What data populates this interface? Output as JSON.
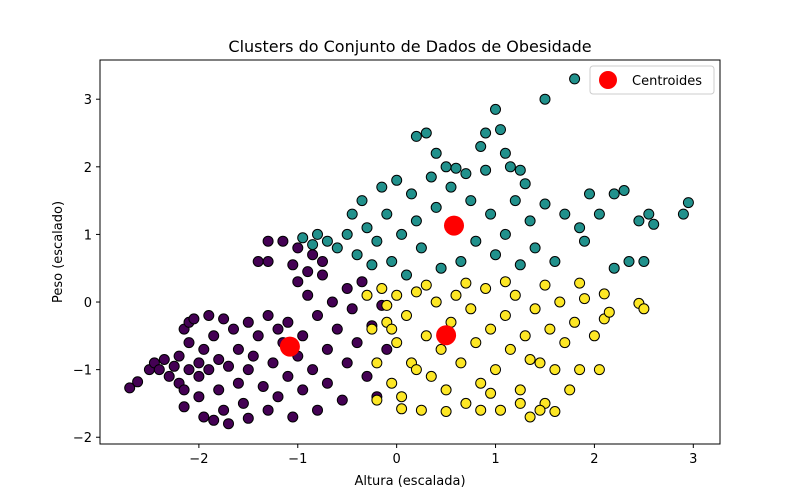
{
  "chart_data": {
    "type": "scatter",
    "title": "Clusters do Conjunto de Dados de Obesidade",
    "xlabel": "Altura (escalada)",
    "ylabel": "Peso (escalado)",
    "xlim": [
      -3.0,
      3.27
    ],
    "ylim": [
      -2.1,
      3.58
    ],
    "xticks": [
      -2,
      -1,
      0,
      1,
      2,
      3
    ],
    "yticks": [
      -2,
      -1,
      0,
      1,
      2,
      3
    ],
    "xtick_labels": [
      "−2",
      "−1",
      "0",
      "1",
      "2",
      "3"
    ],
    "ytick_labels": [
      "−2",
      "−1",
      "0",
      "1",
      "2",
      "3"
    ],
    "grid": false,
    "legend": {
      "position": "top-right",
      "entries": [
        "Centroides"
      ]
    },
    "colors": {
      "cluster_0": "#440154",
      "cluster_1": "#21918c",
      "cluster_2": "#fde725",
      "centroid": "#ff0000",
      "edge": "#000000"
    },
    "series": [
      {
        "cluster": 0,
        "values": [
          [
            -2.7,
            -1.27
          ],
          [
            -2.62,
            -1.18
          ],
          [
            -2.5,
            -1.0
          ],
          [
            -2.45,
            -0.9
          ],
          [
            -2.4,
            -1.0
          ],
          [
            -2.35,
            -0.85
          ],
          [
            -2.3,
            -1.1
          ],
          [
            -2.25,
            -0.95
          ],
          [
            -2.2,
            -0.8
          ],
          [
            -2.2,
            -1.2
          ],
          [
            -2.15,
            -1.55
          ],
          [
            -2.15,
            -1.3
          ],
          [
            -2.15,
            -0.4
          ],
          [
            -2.1,
            -0.3
          ],
          [
            -2.1,
            -0.6
          ],
          [
            -2.1,
            -1.0
          ],
          [
            -2.05,
            -0.25
          ],
          [
            -2.0,
            -0.9
          ],
          [
            -2.0,
            -1.4
          ],
          [
            -2.0,
            -1.1
          ],
          [
            -1.95,
            -0.7
          ],
          [
            -1.95,
            -1.7
          ],
          [
            -1.9,
            -0.2
          ],
          [
            -1.9,
            -1.0
          ],
          [
            -1.85,
            -1.75
          ],
          [
            -1.85,
            -0.5
          ],
          [
            -1.8,
            -0.85
          ],
          [
            -1.8,
            -1.3
          ],
          [
            -1.75,
            -0.25
          ],
          [
            -1.75,
            -1.6
          ],
          [
            -1.7,
            -1.8
          ],
          [
            -1.7,
            -0.95
          ],
          [
            -1.65,
            -0.4
          ],
          [
            -1.6,
            -1.2
          ],
          [
            -1.6,
            -0.7
          ],
          [
            -1.55,
            -1.5
          ],
          [
            -1.5,
            -0.3
          ],
          [
            -1.5,
            -1.0
          ],
          [
            -1.5,
            -1.72
          ],
          [
            -1.45,
            -0.8
          ],
          [
            -1.4,
            0.6
          ],
          [
            -1.4,
            -0.5
          ],
          [
            -1.35,
            -1.25
          ],
          [
            -1.3,
            0.6
          ],
          [
            -1.3,
            -0.2
          ],
          [
            -1.3,
            -1.6
          ],
          [
            -1.25,
            -0.9
          ],
          [
            -1.2,
            -0.4
          ],
          [
            -1.2,
            -1.4
          ],
          [
            -1.15,
            -0.6
          ],
          [
            -1.1,
            -1.1
          ],
          [
            -1.1,
            -0.3
          ],
          [
            -1.05,
            -1.7
          ],
          [
            -1.0,
            -0.8
          ],
          [
            -1.0,
            0.3
          ],
          [
            -0.95,
            -0.5
          ],
          [
            -0.95,
            -1.3
          ],
          [
            -0.9,
            0.1
          ],
          [
            -0.85,
            -1.0
          ],
          [
            -0.8,
            -0.2
          ],
          [
            -0.8,
            -1.6
          ],
          [
            -0.75,
            0.4
          ],
          [
            -0.7,
            -0.7
          ],
          [
            -0.7,
            -1.2
          ],
          [
            -0.65,
            0.0
          ],
          [
            -0.6,
            -0.4
          ],
          [
            -0.55,
            -1.45
          ],
          [
            -0.5,
            0.2
          ],
          [
            -0.5,
            -0.9
          ],
          [
            -0.45,
            -0.1
          ],
          [
            -0.4,
            -0.6
          ],
          [
            -0.35,
            0.3
          ],
          [
            -0.3,
            -1.1
          ],
          [
            -0.25,
            -0.35
          ],
          [
            -0.2,
            -1.4
          ],
          [
            -0.15,
            -0.05
          ],
          [
            -0.1,
            -0.7
          ],
          [
            -1.3,
            0.9
          ],
          [
            -1.15,
            0.9
          ],
          [
            -1.0,
            0.8
          ],
          [
            -0.85,
            0.7
          ],
          [
            -0.75,
            0.6
          ],
          [
            -1.05,
            0.55
          ],
          [
            -0.9,
            0.45
          ]
        ]
      },
      {
        "cluster": 1,
        "values": [
          [
            -0.95,
            0.95
          ],
          [
            -0.85,
            0.85
          ],
          [
            -0.8,
            1.0
          ],
          [
            -0.7,
            0.9
          ],
          [
            -0.6,
            0.8
          ],
          [
            -0.5,
            1.0
          ],
          [
            -0.45,
            1.3
          ],
          [
            -0.4,
            0.7
          ],
          [
            -0.35,
            1.5
          ],
          [
            -0.3,
            1.1
          ],
          [
            -0.25,
            0.55
          ],
          [
            -0.2,
            0.9
          ],
          [
            -0.15,
            1.7
          ],
          [
            -0.1,
            1.3
          ],
          [
            -0.05,
            0.6
          ],
          [
            0.0,
            1.8
          ],
          [
            0.05,
            1.0
          ],
          [
            0.1,
            0.4
          ],
          [
            0.15,
            1.6
          ],
          [
            0.2,
            1.2
          ],
          [
            0.25,
            0.8
          ],
          [
            0.3,
            2.5
          ],
          [
            0.35,
            1.85
          ],
          [
            0.4,
            1.4
          ],
          [
            0.45,
            0.5
          ],
          [
            0.5,
            2.0
          ],
          [
            0.55,
            1.7
          ],
          [
            0.6,
            1.1
          ],
          [
            0.65,
            0.6
          ],
          [
            0.7,
            1.9
          ],
          [
            0.75,
            1.5
          ],
          [
            0.8,
            0.9
          ],
          [
            0.85,
            2.3
          ],
          [
            0.9,
            1.95
          ],
          [
            0.95,
            1.3
          ],
          [
            1.0,
            2.85
          ],
          [
            1.0,
            0.7
          ],
          [
            1.05,
            2.55
          ],
          [
            1.1,
            1.0
          ],
          [
            1.15,
            2.0
          ],
          [
            1.2,
            1.5
          ],
          [
            1.25,
            0.55
          ],
          [
            1.3,
            1.75
          ],
          [
            1.35,
            1.2
          ],
          [
            1.5,
            3.0
          ],
          [
            1.5,
            1.45
          ],
          [
            1.6,
            0.6
          ],
          [
            1.7,
            1.3
          ],
          [
            1.8,
            3.3
          ],
          [
            1.85,
            1.1
          ],
          [
            1.95,
            1.6
          ],
          [
            2.05,
            1.3
          ],
          [
            2.2,
            1.6
          ],
          [
            2.3,
            1.65
          ],
          [
            2.45,
            1.2
          ],
          [
            2.55,
            1.3
          ],
          [
            2.6,
            1.15
          ],
          [
            2.9,
            1.3
          ],
          [
            2.95,
            1.47
          ],
          [
            2.35,
            0.6
          ],
          [
            2.5,
            0.6
          ],
          [
            2.2,
            0.5
          ],
          [
            1.9,
            0.9
          ],
          [
            1.4,
            0.8
          ],
          [
            0.2,
            2.45
          ],
          [
            0.4,
            2.2
          ],
          [
            0.6,
            1.98
          ],
          [
            0.9,
            2.5
          ],
          [
            1.1,
            2.2
          ],
          [
            1.25,
            1.95
          ]
        ]
      },
      {
        "cluster": 2,
        "values": [
          [
            -0.3,
            0.1
          ],
          [
            -0.25,
            -0.4
          ],
          [
            -0.2,
            -0.9
          ],
          [
            -0.15,
            0.2
          ],
          [
            -0.1,
            -0.3
          ],
          [
            -0.05,
            -1.2
          ],
          [
            0.0,
            0.1
          ],
          [
            0.0,
            -0.6
          ],
          [
            0.05,
            -1.4
          ],
          [
            0.1,
            -0.2
          ],
          [
            0.15,
            -0.9
          ],
          [
            0.2,
            0.15
          ],
          [
            0.25,
            -1.6
          ],
          [
            0.3,
            -0.5
          ],
          [
            0.35,
            -1.1
          ],
          [
            0.4,
            0.0
          ],
          [
            0.45,
            -0.7
          ],
          [
            0.5,
            -1.3
          ],
          [
            0.55,
            -0.3
          ],
          [
            0.6,
            0.1
          ],
          [
            0.65,
            -0.9
          ],
          [
            0.7,
            -1.5
          ],
          [
            0.75,
            -0.1
          ],
          [
            0.8,
            -0.6
          ],
          [
            0.85,
            -1.2
          ],
          [
            0.9,
            0.2
          ],
          [
            0.95,
            -0.4
          ],
          [
            1.0,
            -1.0
          ],
          [
            1.05,
            -1.6
          ],
          [
            1.1,
            -0.2
          ],
          [
            1.15,
            -0.7
          ],
          [
            1.2,
            0.1
          ],
          [
            1.25,
            -1.3
          ],
          [
            1.3,
            -0.5
          ],
          [
            1.35,
            -1.7
          ],
          [
            1.4,
            -0.1
          ],
          [
            1.45,
            -0.9
          ],
          [
            1.5,
            -1.5
          ],
          [
            1.55,
            -0.4
          ],
          [
            1.6,
            -1.0
          ],
          [
            1.65,
            0.0
          ],
          [
            1.7,
            -0.6
          ],
          [
            1.75,
            -1.3
          ],
          [
            1.8,
            -0.3
          ],
          [
            1.85,
            -1.0
          ],
          [
            1.9,
            0.05
          ],
          [
            2.0,
            -0.5
          ],
          [
            2.05,
            -1.0
          ],
          [
            2.1,
            -0.25
          ],
          [
            2.15,
            -0.15
          ],
          [
            2.45,
            -0.02
          ],
          [
            2.5,
            -0.1
          ],
          [
            1.6,
            -1.62
          ],
          [
            1.45,
            -1.6
          ],
          [
            1.25,
            -1.5
          ],
          [
            0.85,
            -1.6
          ],
          [
            0.5,
            -1.62
          ],
          [
            0.05,
            -1.58
          ],
          [
            -0.2,
            -1.45
          ],
          [
            -0.1,
            -0.05
          ],
          [
            0.3,
            0.25
          ],
          [
            0.7,
            0.28
          ],
          [
            1.1,
            0.3
          ],
          [
            1.5,
            0.25
          ],
          [
            1.85,
            0.28
          ],
          [
            2.1,
            0.12
          ],
          [
            1.35,
            -0.85
          ],
          [
            0.95,
            -1.35
          ],
          [
            0.2,
            -1.0
          ],
          [
            -0.05,
            -0.4
          ]
        ]
      }
    ],
    "centroids": [
      [
        -1.08,
        -0.66
      ],
      [
        0.58,
        1.13
      ],
      [
        0.5,
        -0.49
      ]
    ]
  }
}
